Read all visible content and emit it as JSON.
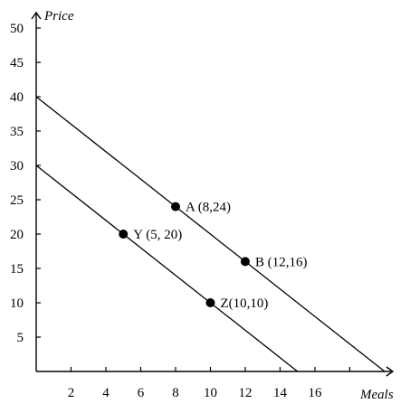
{
  "chart_data": {
    "type": "line",
    "title": "",
    "xlabel": "Meals",
    "ylabel": "Price",
    "xlim": [
      0,
      20
    ],
    "ylim": [
      0,
      53
    ],
    "x_ticks": [
      2,
      4,
      6,
      8,
      10,
      12,
      14,
      16,
      18
    ],
    "x_tick_labels": [
      "2",
      "4",
      "6",
      "8",
      "10",
      "12",
      "14",
      "16",
      ""
    ],
    "y_ticks": [
      5,
      10,
      15,
      20,
      25,
      30,
      35,
      40,
      45,
      50
    ],
    "y_tick_labels": [
      "5",
      "10",
      "15",
      "20",
      "25",
      "30",
      "35",
      "40",
      "45",
      "50"
    ],
    "grid": false,
    "series": [
      {
        "x": [
          0,
          20
        ],
        "values": [
          40,
          0
        ]
      },
      {
        "x": [
          0,
          15
        ],
        "values": [
          30,
          0
        ]
      }
    ],
    "points": [
      {
        "label": "A (8,24)",
        "x": 8,
        "y": 24
      },
      {
        "label": "B (12,16)",
        "x": 12,
        "y": 16
      },
      {
        "label": "Y (5, 20)",
        "x": 5,
        "y": 20
      },
      {
        "label": "Z(10,10)",
        "x": 10,
        "y": 10
      }
    ]
  }
}
